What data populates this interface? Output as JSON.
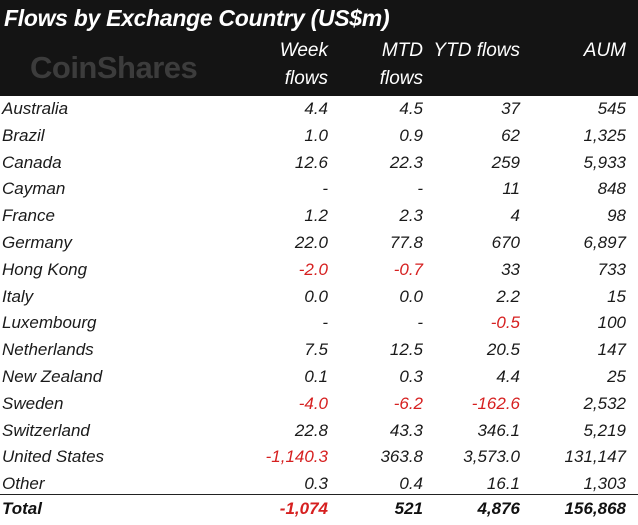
{
  "chart_data": {
    "type": "table",
    "title": "Flows by Exchange Country (US$m)",
    "brand": "CoinShares",
    "columns": [
      {
        "lines": [
          "Week",
          "flows"
        ]
      },
      {
        "lines": [
          "MTD",
          "flows"
        ]
      },
      {
        "lines": [
          "",
          "YTD flows"
        ]
      },
      {
        "lines": [
          "",
          "AUM"
        ]
      }
    ],
    "rows": [
      {
        "country": "Australia",
        "values": [
          "4.4",
          "4.5",
          "37",
          "545"
        ]
      },
      {
        "country": "Brazil",
        "values": [
          "1.0",
          "0.9",
          "62",
          "1,325"
        ]
      },
      {
        "country": "Canada",
        "values": [
          "12.6",
          "22.3",
          "259",
          "5,933"
        ]
      },
      {
        "country": "Cayman",
        "values": [
          "-",
          "-",
          "11",
          "848"
        ]
      },
      {
        "country": "France",
        "values": [
          "1.2",
          "2.3",
          "4",
          "98"
        ]
      },
      {
        "country": "Germany",
        "values": [
          "22.0",
          "77.8",
          "670",
          "6,897"
        ]
      },
      {
        "country": "Hong Kong",
        "values": [
          "-2.0",
          "-0.7",
          "33",
          "733"
        ]
      },
      {
        "country": "Italy",
        "values": [
          "0.0",
          "0.0",
          "2.2",
          "15"
        ]
      },
      {
        "country": "Luxembourg",
        "values": [
          "-",
          "-",
          "-0.5",
          "100"
        ]
      },
      {
        "country": "Netherlands",
        "values": [
          "7.5",
          "12.5",
          "20.5",
          "147"
        ]
      },
      {
        "country": "New Zealand",
        "values": [
          "0.1",
          "0.3",
          "4.4",
          "25"
        ]
      },
      {
        "country": "Sweden",
        "values": [
          "-4.0",
          "-6.2",
          "-162.6",
          "2,532"
        ]
      },
      {
        "country": "Switzerland",
        "values": [
          "22.8",
          "43.3",
          "346.1",
          "5,219"
        ]
      },
      {
        "country": "United States",
        "values": [
          "-1,140.3",
          "363.8",
          "3,573.0",
          "131,147"
        ]
      },
      {
        "country": "Other",
        "values": [
          "0.3",
          "0.4",
          "16.1",
          "1,303"
        ]
      }
    ],
    "total": {
      "label": "Total",
      "values": [
        "-1,074",
        "521",
        "4,876",
        "156,868"
      ]
    },
    "colors": {
      "header_bg": "#141414",
      "header_text": "#ffffff",
      "logo": "#3c3c3c",
      "negative": "#d62020",
      "text": "#1a1a1a"
    }
  }
}
